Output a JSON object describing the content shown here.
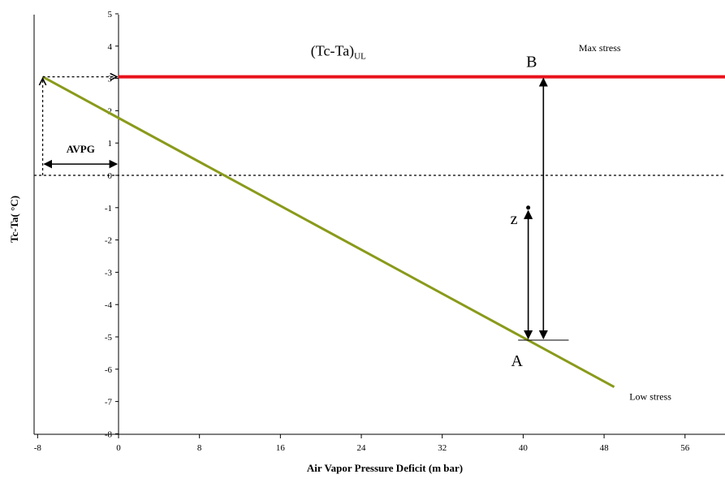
{
  "chart_data": {
    "type": "line",
    "xlabel": "Air Vapor Pressure Deficit (m bar)",
    "ylabel": "Tc-Ta( °C)",
    "xlim": [
      -8,
      60
    ],
    "ylim": [
      -8,
      5
    ],
    "x_ticks": [
      "-8",
      "0",
      "8",
      "16",
      "24",
      "32",
      "40",
      "48",
      "56"
    ],
    "x_tick_values": [
      -8,
      0,
      8,
      16,
      24,
      32,
      40,
      48,
      56
    ],
    "y_ticks": [
      "5",
      "4",
      "3",
      "2",
      "1",
      "0",
      "-1",
      "-2",
      "-3",
      "-4",
      "-5",
      "-6",
      "-7",
      "-8"
    ],
    "y_tick_values": [
      5,
      4,
      3,
      2,
      1,
      0,
      -1,
      -2,
      -3,
      -4,
      -5,
      -6,
      -7,
      -8
    ],
    "series": [
      {
        "key": "upper_limit",
        "color": "#e8121c",
        "points": [
          [
            0,
            3.05
          ],
          [
            60,
            3.05
          ]
        ]
      },
      {
        "key": "non_stressed_baseline",
        "color": "#8a9a1a",
        "points": [
          [
            -7.5,
            3.05
          ],
          [
            49,
            -6.55
          ]
        ]
      }
    ],
    "reference_lines": [
      {
        "key": "zero_line",
        "orientation": "horizontal",
        "value": 0,
        "style": "dashed"
      }
    ],
    "annotations": {
      "upper_limit_label_main": "(Tc-Ta)",
      "upper_limit_label_sub": "UL",
      "max_stress": "Max stress",
      "low_stress": "Low stress",
      "point_b": "B",
      "point_a": "A",
      "point_z": "z",
      "avpg": "AVPG"
    },
    "annotation_values": {
      "point_b": [
        42,
        3.05
      ],
      "point_a": [
        40.5,
        -5.1
      ],
      "point_z": [
        40.5,
        -1.0
      ],
      "a_y": -5.1
    }
  }
}
